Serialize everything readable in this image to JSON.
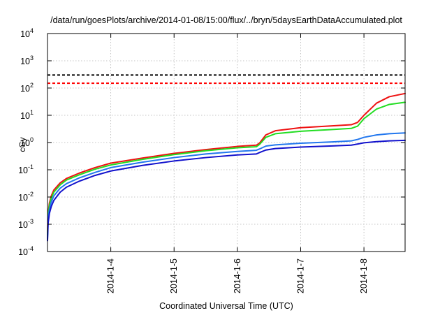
{
  "chart_data": {
    "type": "line",
    "title": "/data/run/goesPlots/archive/2014-01-08/15:00/flux/../bryn/5daysEarthDataAccumulated.plot",
    "xlabel": "Coordinated Universal Time (UTC)",
    "ylabel": "cGy",
    "yscale": "log",
    "xlim": [
      0,
      5.65
    ],
    "ylim": [
      0.0001,
      10000
    ],
    "grid": true,
    "x_tick_values": [
      1,
      2,
      3,
      4,
      5
    ],
    "x_tick_labels": [
      "2014-1-4",
      "2014-1-5",
      "2014-1-6",
      "2014-1-7",
      "2014-1-8"
    ],
    "y_ticks": [
      {
        "value": 0.0001,
        "base": "10",
        "exp": "-4"
      },
      {
        "value": 0.001,
        "base": "10",
        "exp": "-3"
      },
      {
        "value": 0.01,
        "base": "10",
        "exp": "-2"
      },
      {
        "value": 0.1,
        "base": "10",
        "exp": "-1"
      },
      {
        "value": 1,
        "base": "10",
        "exp": "0"
      },
      {
        "value": 10,
        "base": "10",
        "exp": "1"
      },
      {
        "value": 100,
        "base": "10",
        "exp": "2"
      },
      {
        "value": 1000,
        "base": "10",
        "exp": "3"
      },
      {
        "value": 10000,
        "base": "10",
        "exp": "4"
      }
    ],
    "thresholds": [
      {
        "value": 300,
        "color": "#000000"
      },
      {
        "value": 150,
        "color": "#ff0000"
      }
    ],
    "series": [
      {
        "color": "#ee1111",
        "x": [
          0,
          0.01,
          0.03,
          0.06,
          0.1,
          0.2,
          0.3,
          0.5,
          0.75,
          1.0,
          1.5,
          2.0,
          2.5,
          3.0,
          3.3,
          3.35,
          3.45,
          3.6,
          4.0,
          4.5,
          4.8,
          4.9,
          5.0,
          5.2,
          5.4,
          5.65
        ],
        "y": [
          0.0005,
          0.0025,
          0.006,
          0.011,
          0.018,
          0.033,
          0.048,
          0.075,
          0.12,
          0.175,
          0.27,
          0.4,
          0.55,
          0.72,
          0.8,
          0.95,
          1.9,
          2.7,
          3.5,
          4.1,
          4.5,
          5.5,
          10,
          28,
          48,
          63
        ]
      },
      {
        "color": "#22dd22",
        "x": [
          0,
          0.01,
          0.03,
          0.06,
          0.1,
          0.2,
          0.3,
          0.5,
          0.75,
          1.0,
          1.5,
          2.0,
          2.5,
          3.0,
          3.3,
          3.35,
          3.45,
          3.6,
          4.0,
          4.5,
          4.8,
          4.9,
          5.0,
          5.2,
          5.4,
          5.65
        ],
        "y": [
          0.0004,
          0.002,
          0.005,
          0.009,
          0.015,
          0.028,
          0.042,
          0.065,
          0.105,
          0.15,
          0.24,
          0.36,
          0.5,
          0.64,
          0.7,
          0.85,
          1.55,
          2.1,
          2.6,
          3.0,
          3.3,
          4.0,
          7.5,
          17,
          25,
          30
        ]
      },
      {
        "color": "#2277ee",
        "x": [
          0,
          0.01,
          0.03,
          0.06,
          0.1,
          0.2,
          0.3,
          0.5,
          0.75,
          1.0,
          1.5,
          2.0,
          2.5,
          3.0,
          3.3,
          3.35,
          3.45,
          3.6,
          4.0,
          4.5,
          4.8,
          4.9,
          5.0,
          5.2,
          5.4,
          5.65
        ],
        "y": [
          0.0003,
          0.0015,
          0.0035,
          0.0065,
          0.011,
          0.021,
          0.031,
          0.05,
          0.08,
          0.12,
          0.19,
          0.28,
          0.38,
          0.47,
          0.52,
          0.58,
          0.74,
          0.82,
          0.94,
          1.05,
          1.15,
          1.3,
          1.55,
          1.9,
          2.1,
          2.25
        ]
      },
      {
        "color": "#1111cc",
        "x": [
          0,
          0.01,
          0.03,
          0.06,
          0.1,
          0.2,
          0.3,
          0.5,
          0.75,
          1.0,
          1.5,
          2.0,
          2.5,
          3.0,
          3.3,
          3.35,
          3.45,
          3.6,
          4.0,
          4.5,
          4.8,
          4.9,
          5.0,
          5.2,
          5.4,
          5.65
        ],
        "y": [
          0.00025,
          0.0011,
          0.0025,
          0.0045,
          0.0075,
          0.015,
          0.023,
          0.038,
          0.062,
          0.09,
          0.145,
          0.21,
          0.28,
          0.35,
          0.38,
          0.43,
          0.53,
          0.6,
          0.68,
          0.75,
          0.8,
          0.88,
          0.98,
          1.08,
          1.15,
          1.2
        ]
      }
    ]
  }
}
